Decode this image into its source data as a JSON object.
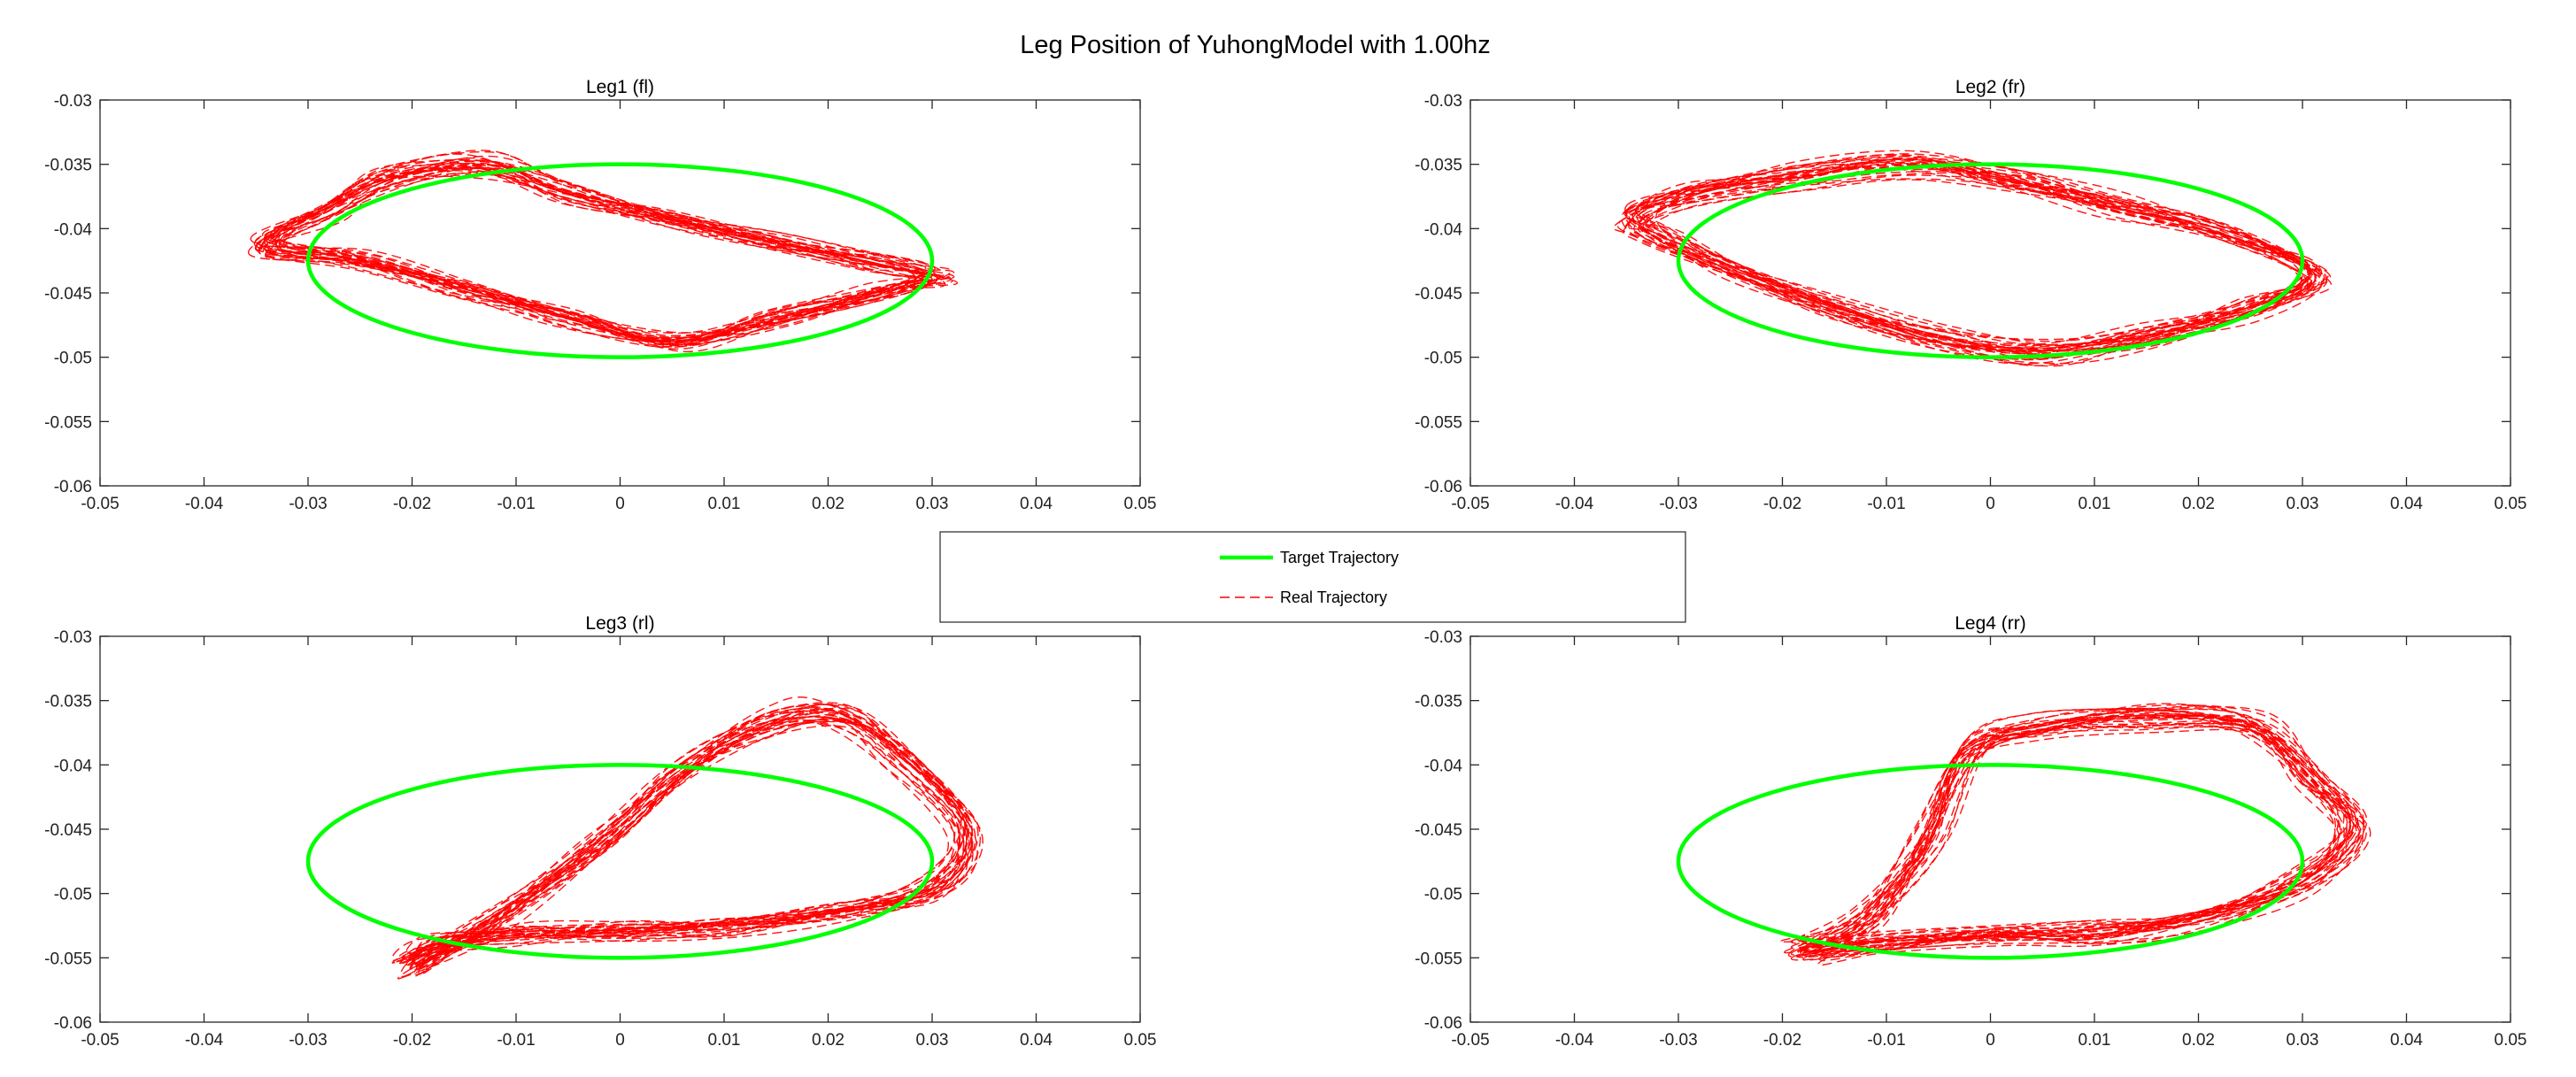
{
  "figure": {
    "title": "Leg Position of YuhongModel with 1.00hz"
  },
  "legend": {
    "entries": [
      {
        "label": "Target Trajectory",
        "color": "#00ff00",
        "style": "solid"
      },
      {
        "label": "Real Trajectory",
        "color": "#ff0000",
        "style": "dashed"
      }
    ],
    "placement": "center"
  },
  "chart_data": [
    {
      "type": "line",
      "title": "Leg1 (fl)",
      "xlim": [
        -0.05,
        0.05
      ],
      "ylim": [
        -0.06,
        -0.03
      ],
      "xticks": [
        -0.05,
        -0.04,
        -0.03,
        -0.02,
        -0.01,
        0,
        0.01,
        0.02,
        0.03,
        0.04,
        0.05
      ],
      "yticks": [
        -0.06,
        -0.055,
        -0.05,
        -0.045,
        -0.04,
        -0.035,
        -0.03
      ],
      "xtick_labels": [
        "-0.05",
        "-0.04",
        "-0.03",
        "-0.02",
        "-0.01",
        "0",
        "0.01",
        "0.02",
        "0.03",
        "0.04",
        "0.05"
      ],
      "ytick_labels": [
        "-0.06",
        "-0.055",
        "-0.05",
        "-0.045",
        "-0.04",
        "-0.035",
        "-0.03"
      ],
      "grid": false,
      "series": [
        {
          "name": "Target Trajectory",
          "color": "#00ff00",
          "ellipse": {
            "cx": 0.0,
            "cy": -0.0425,
            "rx": 0.03,
            "ry": 0.0075
          }
        },
        {
          "name": "Real Trajectory",
          "color": "#ff0000",
          "cycles": 30,
          "path": [
            [
              -0.034,
              -0.0413
            ],
            [
              -0.028,
              -0.0385
            ],
            [
              -0.022,
              -0.036
            ],
            [
              -0.013,
              -0.035
            ],
            [
              -0.005,
              -0.0372
            ],
            [
              0.005,
              -0.0392
            ],
            [
              0.015,
              -0.041
            ],
            [
              0.025,
              -0.0428
            ],
            [
              0.03,
              -0.0437
            ],
            [
              0.025,
              -0.045
            ],
            [
              0.015,
              -0.047
            ],
            [
              0.005,
              -0.0488
            ],
            [
              -0.005,
              -0.047
            ],
            [
              -0.015,
              -0.0448
            ],
            [
              -0.025,
              -0.0425
            ]
          ]
        }
      ]
    },
    {
      "type": "line",
      "title": "Leg2 (fr)",
      "xlim": [
        -0.05,
        0.05
      ],
      "ylim": [
        -0.06,
        -0.03
      ],
      "xticks": [
        -0.05,
        -0.04,
        -0.03,
        -0.02,
        -0.01,
        0,
        0.01,
        0.02,
        0.03,
        0.04,
        0.05
      ],
      "yticks": [
        -0.06,
        -0.055,
        -0.05,
        -0.045,
        -0.04,
        -0.035,
        -0.03
      ],
      "xtick_labels": [
        "-0.05",
        "-0.04",
        "-0.03",
        "-0.02",
        "-0.01",
        "0",
        "0.01",
        "0.02",
        "0.03",
        "0.04",
        "0.05"
      ],
      "ytick_labels": [
        "-0.06",
        "-0.055",
        "-0.05",
        "-0.045",
        "-0.04",
        "-0.035",
        "-0.03"
      ],
      "grid": false,
      "series": [
        {
          "name": "Target Trajectory",
          "color": "#00ff00",
          "ellipse": {
            "cx": 0.0,
            "cy": -0.0425,
            "rx": 0.03,
            "ry": 0.0075
          }
        },
        {
          "name": "Real Trajectory",
          "color": "#ff0000",
          "cycles": 30,
          "path": [
            [
              -0.034,
              -0.039
            ],
            [
              -0.028,
              -0.0372
            ],
            [
              -0.018,
              -0.0358
            ],
            [
              -0.008,
              -0.035
            ],
            [
              0.002,
              -0.0362
            ],
            [
              0.012,
              -0.0382
            ],
            [
              0.022,
              -0.0402
            ],
            [
              0.031,
              -0.0435
            ],
            [
              0.025,
              -0.046
            ],
            [
              0.015,
              -0.0482
            ],
            [
              0.005,
              -0.0495
            ],
            [
              -0.005,
              -0.0485
            ],
            [
              -0.015,
              -0.046
            ],
            [
              -0.025,
              -0.043
            ],
            [
              -0.032,
              -0.0405
            ]
          ]
        }
      ]
    },
    {
      "type": "line",
      "title": "Leg3 (rl)",
      "xlim": [
        -0.05,
        0.05
      ],
      "ylim": [
        -0.06,
        -0.03
      ],
      "xticks": [
        -0.05,
        -0.04,
        -0.03,
        -0.02,
        -0.01,
        0,
        0.01,
        0.02,
        0.03,
        0.04,
        0.05
      ],
      "yticks": [
        -0.06,
        -0.055,
        -0.05,
        -0.045,
        -0.04,
        -0.035,
        -0.03
      ],
      "xtick_labels": [
        "-0.05",
        "-0.04",
        "-0.03",
        "-0.02",
        "-0.01",
        "0",
        "0.01",
        "0.02",
        "0.03",
        "0.04",
        "0.05"
      ],
      "ytick_labels": [
        "-0.06",
        "-0.055",
        "-0.05",
        "-0.045",
        "-0.04",
        "-0.035",
        "-0.03"
      ],
      "grid": false,
      "series": [
        {
          "name": "Target Trajectory",
          "color": "#00ff00",
          "ellipse": {
            "cx": 0.0,
            "cy": -0.0475,
            "rx": 0.03,
            "ry": 0.0075
          }
        },
        {
          "name": "Real Trajectory",
          "color": "#ff0000",
          "cycles": 30,
          "path": [
            [
              -0.02,
              -0.0555
            ],
            [
              -0.012,
              -0.052
            ],
            [
              -0.002,
              -0.046
            ],
            [
              0.006,
              -0.0405
            ],
            [
              0.014,
              -0.037
            ],
            [
              0.021,
              -0.0362
            ],
            [
              0.027,
              -0.0395
            ],
            [
              0.033,
              -0.045
            ],
            [
              0.03,
              -0.0495
            ],
            [
              0.02,
              -0.0515
            ],
            [
              0.01,
              -0.0525
            ],
            [
              0.0,
              -0.0528
            ],
            [
              -0.01,
              -0.053
            ],
            [
              -0.018,
              -0.054
            ]
          ]
        }
      ]
    },
    {
      "type": "line",
      "title": "Leg4 (rr)",
      "xlim": [
        -0.05,
        0.05
      ],
      "ylim": [
        -0.06,
        -0.03
      ],
      "xticks": [
        -0.05,
        -0.04,
        -0.03,
        -0.02,
        -0.01,
        0,
        0.01,
        0.02,
        0.03,
        0.04,
        0.05
      ],
      "yticks": [
        -0.06,
        -0.055,
        -0.05,
        -0.045,
        -0.04,
        -0.035,
        -0.03
      ],
      "xtick_labels": [
        "-0.05",
        "-0.04",
        "-0.03",
        "-0.02",
        "-0.01",
        "0",
        "0.01",
        "0.02",
        "0.03",
        "0.04",
        "0.05"
      ],
      "ytick_labels": [
        "-0.06",
        "-0.055",
        "-0.05",
        "-0.045",
        "-0.04",
        "-0.035",
        "-0.03"
      ],
      "grid": false,
      "series": [
        {
          "name": "Target Trajectory",
          "color": "#00ff00",
          "ellipse": {
            "cx": 0.0,
            "cy": -0.0475,
            "rx": 0.03,
            "ry": 0.0075
          }
        },
        {
          "name": "Real Trajectory",
          "color": "#ff0000",
          "cycles": 30,
          "path": [
            [
              -0.018,
              -0.0545
            ],
            [
              -0.012,
              -0.052
            ],
            [
              -0.006,
              -0.046
            ],
            [
              -0.002,
              -0.039
            ],
            [
              0.005,
              -0.037
            ],
            [
              0.015,
              -0.0362
            ],
            [
              0.025,
              -0.0368
            ],
            [
              0.031,
              -0.041
            ],
            [
              0.035,
              -0.045
            ],
            [
              0.03,
              -0.049
            ],
            [
              0.02,
              -0.052
            ],
            [
              0.01,
              -0.053
            ],
            [
              0.0,
              -0.0532
            ],
            [
              -0.01,
              -0.0538
            ]
          ]
        }
      ]
    }
  ]
}
